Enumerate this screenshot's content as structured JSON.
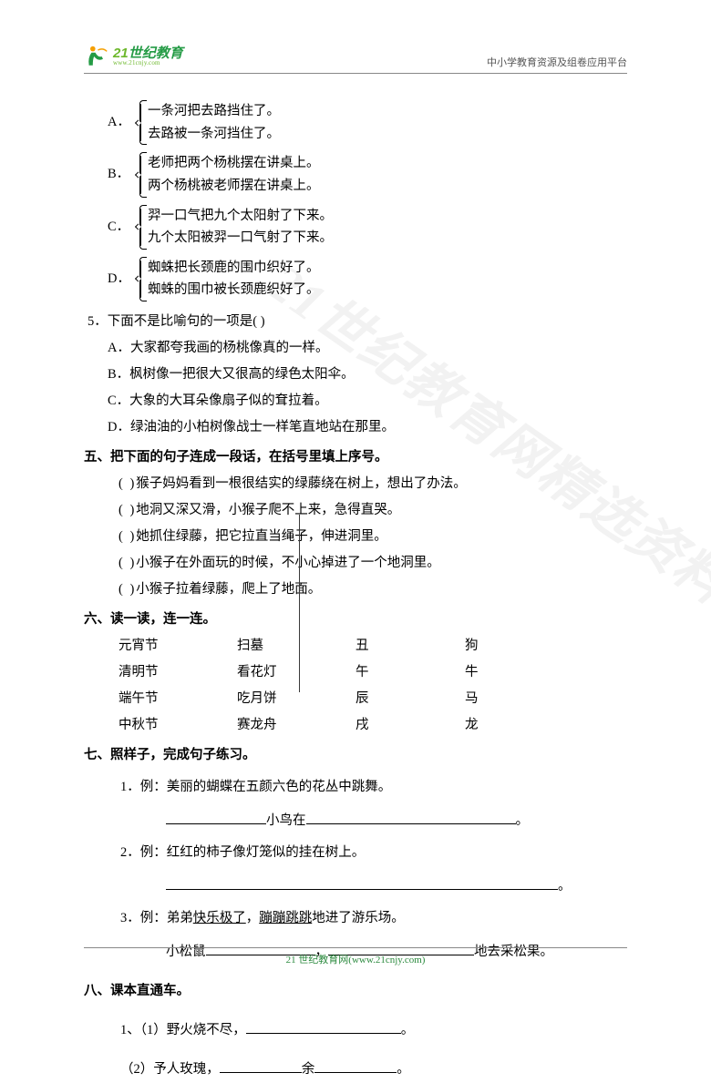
{
  "header": {
    "logo_cn_prefix": "21",
    "logo_cn_main": "世纪教育",
    "logo_url": "www.21cnjy.com",
    "right_text": "中小学教育资源及组卷应用平台"
  },
  "watermark": "21世纪教育网精选资料",
  "q4_options": [
    {
      "label": "A．",
      "line1": "一条河把去路挡住了。",
      "line2": "去路被一条河挡住了。"
    },
    {
      "label": "B．",
      "line1": "老师把两个杨桃摆在讲桌上。",
      "line2": "两个杨桃被老师摆在讲桌上。"
    },
    {
      "label": "C．",
      "line1": "羿一口气把九个太阳射了下来。",
      "line2": "九个太阳被羿一口气射了下来。"
    },
    {
      "label": "D．",
      "line1": "蜘蛛把长颈鹿的围巾织好了。",
      "line2": "蜘蛛的围巾被长颈鹿织好了。"
    }
  ],
  "q5": {
    "stem_prefix": "5．",
    "stem": "下面不是比喻句的一项是(          )",
    "opts": [
      "A．大家都夸我画的杨桃像真的一样。",
      "B．枫树像一把很大又很高的绿色太阳伞。",
      "C．大象的大耳朵像扇子似的耷拉着。",
      "D．绿油油的小柏树像战士一样笔直地站在那里。"
    ]
  },
  "sec5": {
    "title": "五、把下面的句子连成一段话，在括号里填上序号。",
    "lines": [
      "猴子妈妈看到一根很结实的绿藤绕在树上，想出了办法。",
      "地洞又深又滑，小猴子爬不上来，急得直哭。",
      "她抓住绿藤，把它拉直当绳子，伸进洞里。",
      "小猴子在外面玩的时候，不小心掉进了一个地洞里。",
      "小猴子拉着绿藤，爬上了地面。"
    ],
    "paren": "(        )"
  },
  "sec6": {
    "title": "六、读一读，连一连。",
    "rows": [
      [
        "元宵节",
        "扫墓",
        "丑",
        "狗"
      ],
      [
        "清明节",
        "看花灯",
        "午",
        "牛"
      ],
      [
        "端午节",
        "吃月饼",
        "辰",
        "马"
      ],
      [
        "中秋节",
        "赛龙舟",
        "戌",
        "龙"
      ]
    ]
  },
  "sec7": {
    "title": "七、照样子，完成句子练习。",
    "items": [
      {
        "num": "1．",
        "example_label": "例：",
        "example": "美丽的蝴蝶在五颜六色的花丛中跳舞。",
        "fill_prefix_blank_w": 110,
        "fill_mid": "小鸟在",
        "fill_suffix_blank_w": 230,
        "fill_suffix": "。"
      },
      {
        "num": "2．",
        "example_label": "例：",
        "example": "红红的柿子像灯笼似的挂在树上。",
        "full_blank_w": 430,
        "fill_suffix": "。"
      },
      {
        "num": "3．",
        "example_label": "例：",
        "example_pre": "弟弟",
        "example_u1": "快乐极了",
        "example_mid": "，",
        "example_u2": "蹦蹦跳跳",
        "example_post": "地进了游乐场。",
        "fill_prefix": "小松鼠",
        "blank1_w": 120,
        "sep": "，",
        "blank2_w": 160,
        "fill_suffix": "地去采松果。"
      }
    ]
  },
  "sec8": {
    "title": "八、课本直通车。",
    "items": [
      {
        "num": "1、",
        "sub": "（1）",
        "pre": "野火烧不尽，",
        "blank_w": 170,
        "post": "。"
      },
      {
        "sub": "（2）",
        "pre": "予人玫瑰，",
        "blank1_w": 90,
        "mid": "余",
        "blank2_w": 90,
        "post": "。"
      }
    ]
  },
  "footer": "21 世纪教育网(www.21cnjy.com)"
}
